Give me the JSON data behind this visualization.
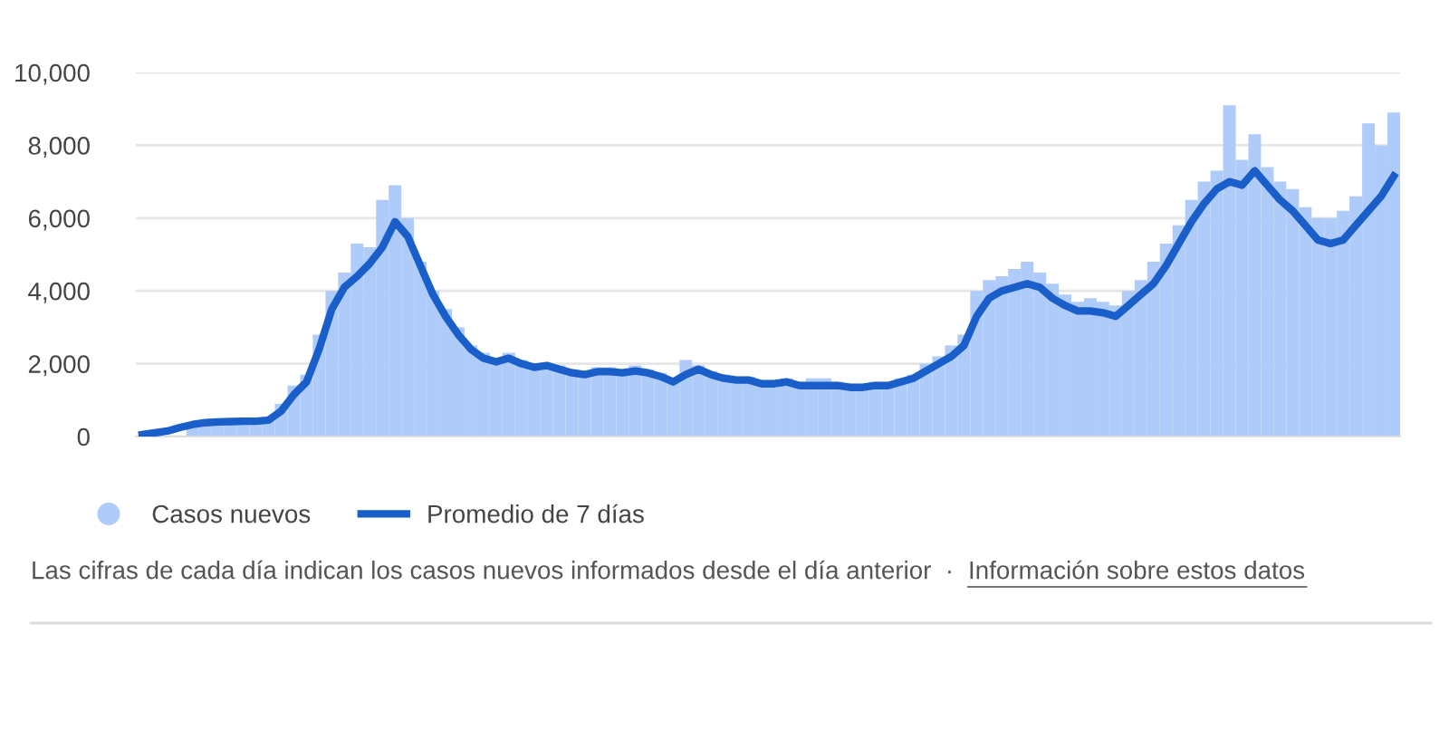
{
  "chart_data": {
    "type": "bar",
    "categories": [
      null,
      null,
      null,
      null,
      null,
      null,
      null,
      null,
      null,
      null,
      null,
      null,
      null,
      null,
      null,
      null,
      null,
      null,
      null,
      null,
      null,
      null,
      null,
      null,
      null,
      null,
      null,
      null,
      null,
      null,
      null,
      null,
      null,
      null,
      null,
      null,
      null,
      null,
      null,
      null,
      null,
      null,
      null,
      null,
      null,
      null,
      null,
      null,
      null,
      null,
      null,
      null,
      null,
      null,
      null,
      null,
      null,
      null,
      null,
      null,
      null,
      null,
      null,
      null,
      null,
      null,
      null,
      null,
      null,
      null,
      null,
      null,
      null,
      null,
      null,
      null,
      null,
      null,
      null,
      null,
      null,
      null,
      null,
      null,
      null,
      null,
      null,
      null,
      null,
      null,
      null,
      null,
      null,
      null,
      null,
      null,
      null,
      null,
      null,
      null
    ],
    "series": [
      {
        "name": "Casos nuevos",
        "color": "#aecbfa",
        "values": [
          null,
          null,
          null,
          null,
          350,
          400,
          420,
          430,
          440,
          450,
          500,
          900,
          1400,
          1700,
          2800,
          4000,
          4500,
          5300,
          5200,
          6500,
          6900,
          6000,
          4800,
          4000,
          3500,
          3000,
          2500,
          2300,
          2100,
          2300,
          2100,
          2000,
          2000,
          1950,
          1850,
          1800,
          1900,
          1900,
          1850,
          1950,
          1850,
          1750,
          1600,
          2100,
          1950,
          1800,
          1700,
          1650,
          1650,
          1550,
          1550,
          1600,
          1500,
          1600,
          1600,
          1500,
          1450,
          1450,
          1500,
          1500,
          1600,
          1700,
          2000,
          2200,
          2500,
          2800,
          4000,
          4300,
          4400,
          4600,
          4800,
          4500,
          4200,
          3900,
          3700,
          3800,
          3700,
          3600,
          4000,
          4300,
          4800,
          5300,
          5800,
          6500,
          7000,
          7300,
          9100,
          7600,
          8300,
          7400,
          7000,
          6800,
          6300,
          6000,
          6000,
          6200,
          6600,
          8600,
          8000,
          8900
        ]
      },
      {
        "name": "Promedio de 7 días",
        "type": "line",
        "color": "#1a5fc9",
        "values": [
          50,
          100,
          150,
          250,
          330,
          380,
          400,
          410,
          420,
          420,
          450,
          700,
          1150,
          1500,
          2400,
          3500,
          4100,
          4400,
          4750,
          5200,
          5900,
          5500,
          4700,
          3900,
          3300,
          2800,
          2400,
          2150,
          2050,
          2150,
          2000,
          1900,
          1950,
          1850,
          1750,
          1700,
          1780,
          1780,
          1750,
          1800,
          1750,
          1650,
          1500,
          1700,
          1850,
          1700,
          1600,
          1550,
          1550,
          1450,
          1450,
          1500,
          1400,
          1400,
          1400,
          1400,
          1350,
          1350,
          1400,
          1400,
          1500,
          1600,
          1800,
          2000,
          2200,
          2500,
          3300,
          3800,
          4000,
          4100,
          4200,
          4100,
          3800,
          3600,
          3450,
          3450,
          3400,
          3300,
          3600,
          3900,
          4200,
          4700,
          5300,
          5900,
          6400,
          6800,
          7000,
          6900,
          7300,
          6900,
          6500,
          6200,
          5800,
          5400,
          5300,
          5400,
          5800,
          6200,
          6600,
          7150
        ]
      }
    ],
    "ylim": [
      0,
      10000
    ],
    "yticks": [
      0,
      {
        "value": 2000,
        "label": "2,000"
      },
      {
        "value": 4000,
        "label": "4,000"
      },
      {
        "value": 6000,
        "label": "6,000"
      },
      {
        "value": 8000,
        "label": "8,000"
      },
      {
        "value": 10000,
        "label": "10,000"
      }
    ],
    "grid": "y",
    "legend": "bottom left",
    "marker": "none",
    "line_style": "solid",
    "annotations": [
      "Las cifras de cada día indican los casos nuevos informados desde el día anterior  ·",
      "Información sobre estos datos"
    ]
  }
}
